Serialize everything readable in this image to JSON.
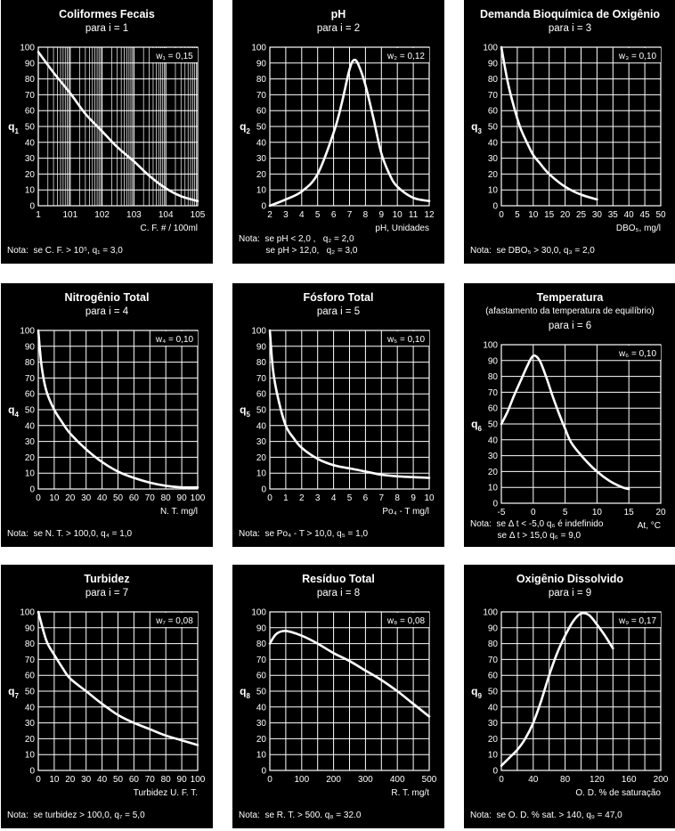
{
  "panels": [
    {
      "title": "Coliformes Fecais",
      "subtitle": "para i = 1",
      "weight_label": "w₁ = 0,15",
      "ylabel_main": "q",
      "ylabel_sub": "1",
      "xlabel": "C. F. # / 100ml",
      "note_lines": [
        "Nota:  se C. F. > 10⁵, q₁ = 3,0"
      ]
    },
    {
      "title": "pH",
      "subtitle": "para i = 2",
      "weight_label": "w₂ = 0,12",
      "ylabel_main": "q",
      "ylabel_sub": "2",
      "xlabel": "pH, Unidades",
      "note_lines": [
        "Nota:  se pH < 2,0 ,   q₂ = 2,0",
        "           se pH > 12,0,   q₂ = 3,0"
      ]
    },
    {
      "title": "Demanda Bioquímica de Oxigênio",
      "subtitle": "para i = 3",
      "weight_label": "w₃ = 0,10",
      "ylabel_main": "q",
      "ylabel_sub": "3",
      "xlabel": "DBO₅, mg/l",
      "note_lines": [
        "Nota:  se DBO₅ > 30,0, q₃ = 2,0"
      ]
    },
    {
      "title": "Nitrogênio Total",
      "subtitle": "para i = 4",
      "weight_label": "w₄ = 0,10",
      "ylabel_main": "q",
      "ylabel_sub": "4",
      "xlabel": "N. T. mg/l",
      "note_lines": [
        "Nota:  se N. T. > 100,0, q₄ = 1,0"
      ]
    },
    {
      "title": "Fósforo Total",
      "subtitle": "para i = 5",
      "weight_label": "w₅ = 0,10",
      "ylabel_main": "q",
      "ylabel_sub": "5",
      "xlabel": "Po₄ - T mg/l",
      "note_lines": [
        "Nota:  se Po₄ - T > 10,0, q₅ = 1,0"
      ]
    },
    {
      "title": "Temperatura",
      "subtitle2": "(afastamento da temperatura de equilíbrio)",
      "subtitle": "para i = 6",
      "weight_label": "w₆ = 0,10",
      "ylabel_main": "q",
      "ylabel_sub": "6",
      "xlabel": "At, °C",
      "note_lines": [
        "Nota:  se Δ t < -5,0 q₆ é indefinido",
        "           se Δ t > 15,0 q₆ = 9,0"
      ]
    },
    {
      "title": "Turbidez",
      "subtitle": "para i = 7",
      "weight_label": "w₇ = 0,08",
      "ylabel_main": "q",
      "ylabel_sub": "7",
      "xlabel": "Turbidez U. F. T.",
      "note_lines": [
        "Nota:  se turbidez > 100,0, q₇ = 5,0"
      ]
    },
    {
      "title": "Resíduo Total",
      "subtitle": "para i = 8",
      "weight_label": "w₈ = 0,08",
      "ylabel_main": "q",
      "ylabel_sub": "8",
      "xlabel": "R. T. mg/t",
      "note_lines": [
        "Nota:  se R. T. > 500. q₈ = 32.0"
      ]
    },
    {
      "title": "Oxigênio Dissolvido",
      "subtitle": "para i = 9",
      "weight_label": "w₉ = 0,17",
      "ylabel_main": "q",
      "ylabel_sub": "9",
      "xlabel": "O. D. % de saturação",
      "note_lines": [
        "Nota:  se O. D. % sat. > 140, q₉ = 47,0"
      ]
    }
  ],
  "chart_data": [
    {
      "type": "line",
      "x_scale": "log",
      "xlim": [
        1,
        100000
      ],
      "ylim": [
        0,
        100
      ],
      "x_tick_labels": [
        "1",
        "101",
        "102",
        "103",
        "104",
        "105"
      ],
      "y_ticks": [
        0,
        10,
        20,
        30,
        40,
        50,
        60,
        70,
        80,
        90,
        100
      ],
      "grid": true,
      "x": [
        1,
        3,
        10,
        30,
        100,
        300,
        1000,
        3000,
        10000,
        30000,
        100000
      ],
      "y": [
        97,
        84,
        71,
        58,
        47,
        37,
        28,
        19,
        11,
        6,
        3
      ]
    },
    {
      "type": "line",
      "xlim": [
        2,
        12
      ],
      "ylim": [
        0,
        100
      ],
      "x_ticks": [
        2,
        3,
        4,
        5,
        6,
        7,
        8,
        9,
        10,
        11,
        12
      ],
      "y_ticks": [
        0,
        10,
        20,
        30,
        40,
        50,
        60,
        70,
        80,
        90,
        100
      ],
      "grid": true,
      "x": [
        2,
        3,
        4,
        5,
        6,
        6.5,
        7,
        7.3,
        7.6,
        8,
        8.5,
        9,
        9.5,
        10,
        11,
        12
      ],
      "y": [
        0,
        4,
        9,
        20,
        46,
        64,
        86,
        92,
        88,
        76,
        55,
        33,
        20,
        12,
        5,
        3
      ]
    },
    {
      "type": "line",
      "xlim": [
        0,
        50
      ],
      "ylim": [
        0,
        100
      ],
      "x_ticks": [
        0,
        5,
        10,
        15,
        20,
        25,
        30,
        35,
        40,
        45,
        50
      ],
      "y_ticks": [
        0,
        10,
        20,
        30,
        40,
        50,
        60,
        70,
        80,
        90,
        100
      ],
      "grid": true,
      "x": [
        0,
        2,
        4,
        6,
        8,
        10,
        12,
        15,
        20,
        25,
        30
      ],
      "y": [
        100,
        78,
        62,
        49,
        40,
        32,
        27,
        20,
        12,
        7,
        4
      ]
    },
    {
      "type": "line",
      "xlim": [
        0,
        100
      ],
      "ylim": [
        0,
        100
      ],
      "x_ticks": [
        0,
        10,
        20,
        30,
        40,
        50,
        60,
        70,
        80,
        90,
        100
      ],
      "y_ticks": [
        0,
        10,
        20,
        30,
        40,
        50,
        60,
        70,
        80,
        90,
        100
      ],
      "grid": true,
      "x": [
        0,
        2,
        5,
        10,
        15,
        20,
        30,
        40,
        50,
        60,
        70,
        80,
        90,
        100
      ],
      "y": [
        100,
        78,
        62,
        50,
        42,
        35,
        25,
        17,
        11,
        7,
        4,
        2,
        1,
        1
      ]
    },
    {
      "type": "line",
      "xlim": [
        0,
        10
      ],
      "ylim": [
        0,
        100
      ],
      "x_ticks": [
        0,
        1,
        2,
        3,
        4,
        5,
        6,
        7,
        8,
        9,
        10
      ],
      "y_ticks": [
        0,
        10,
        20,
        30,
        40,
        50,
        60,
        70,
        80,
        90,
        100
      ],
      "grid": true,
      "x": [
        0,
        0.2,
        0.5,
        1,
        1.5,
        2,
        3,
        4,
        5,
        6,
        7,
        8,
        9,
        10
      ],
      "y": [
        100,
        75,
        58,
        40,
        32,
        26,
        19,
        15,
        13,
        11,
        9,
        8,
        7.5,
        7
      ]
    },
    {
      "type": "line",
      "xlim": [
        -5,
        20
      ],
      "ylim": [
        0,
        100
      ],
      "x_ticks": [
        -5,
        0,
        5,
        10,
        15,
        20
      ],
      "y_ticks": [
        0,
        10,
        20,
        30,
        40,
        50,
        60,
        70,
        80,
        90,
        100
      ],
      "grid": true,
      "x": [
        -5,
        -4,
        -3,
        -2,
        -1,
        0,
        1,
        2,
        3,
        4,
        5,
        6,
        8,
        10,
        12,
        14,
        15
      ],
      "y": [
        50,
        58,
        68,
        77,
        86,
        93,
        90,
        80,
        68,
        57,
        47,
        38,
        28,
        20,
        14,
        10,
        9
      ]
    },
    {
      "type": "line",
      "xlim": [
        0,
        100
      ],
      "ylim": [
        0,
        100
      ],
      "x_ticks": [
        0,
        10,
        20,
        30,
        40,
        50,
        60,
        70,
        80,
        90,
        100
      ],
      "y_ticks": [
        0,
        10,
        20,
        30,
        40,
        50,
        60,
        70,
        80,
        90,
        100
      ],
      "grid": true,
      "x": [
        0,
        5,
        10,
        15,
        20,
        30,
        40,
        50,
        60,
        70,
        80,
        90,
        100
      ],
      "y": [
        100,
        82,
        73,
        65,
        58,
        50,
        42,
        35,
        30,
        26,
        22,
        19,
        16
      ]
    },
    {
      "type": "line",
      "xlim": [
        0,
        500
      ],
      "ylim": [
        0,
        100
      ],
      "x_ticks": [
        0,
        50,
        100,
        150,
        200,
        250,
        300,
        350,
        400,
        450,
        500
      ],
      "x_tick_labels": [
        "0",
        "",
        "100",
        "",
        "200",
        "",
        "300",
        "",
        "400",
        "",
        "500"
      ],
      "y_ticks": [
        0,
        10,
        20,
        30,
        40,
        50,
        60,
        70,
        80,
        90,
        100
      ],
      "grid": true,
      "x": [
        0,
        20,
        50,
        100,
        150,
        200,
        250,
        300,
        350,
        400,
        450,
        500
      ],
      "y": [
        80,
        86,
        88,
        85,
        80,
        74,
        69,
        63,
        57,
        50,
        42,
        34
      ]
    },
    {
      "type": "line",
      "xlim": [
        0,
        200
      ],
      "ylim": [
        0,
        100
      ],
      "x_ticks": [
        0,
        20,
        40,
        60,
        80,
        100,
        120,
        140,
        160,
        180,
        200
      ],
      "x_tick_labels": [
        "0",
        "",
        "40",
        "",
        "80",
        "",
        "120",
        "",
        "160",
        "",
        "200"
      ],
      "y_ticks": [
        0,
        10,
        20,
        30,
        40,
        50,
        60,
        70,
        80,
        90,
        100
      ],
      "grid": true,
      "x": [
        0,
        10,
        20,
        30,
        40,
        50,
        60,
        70,
        80,
        90,
        100,
        110,
        120,
        130,
        140
      ],
      "y": [
        3,
        8,
        13,
        20,
        30,
        44,
        60,
        74,
        85,
        94,
        99,
        98,
        92,
        85,
        77
      ]
    }
  ]
}
